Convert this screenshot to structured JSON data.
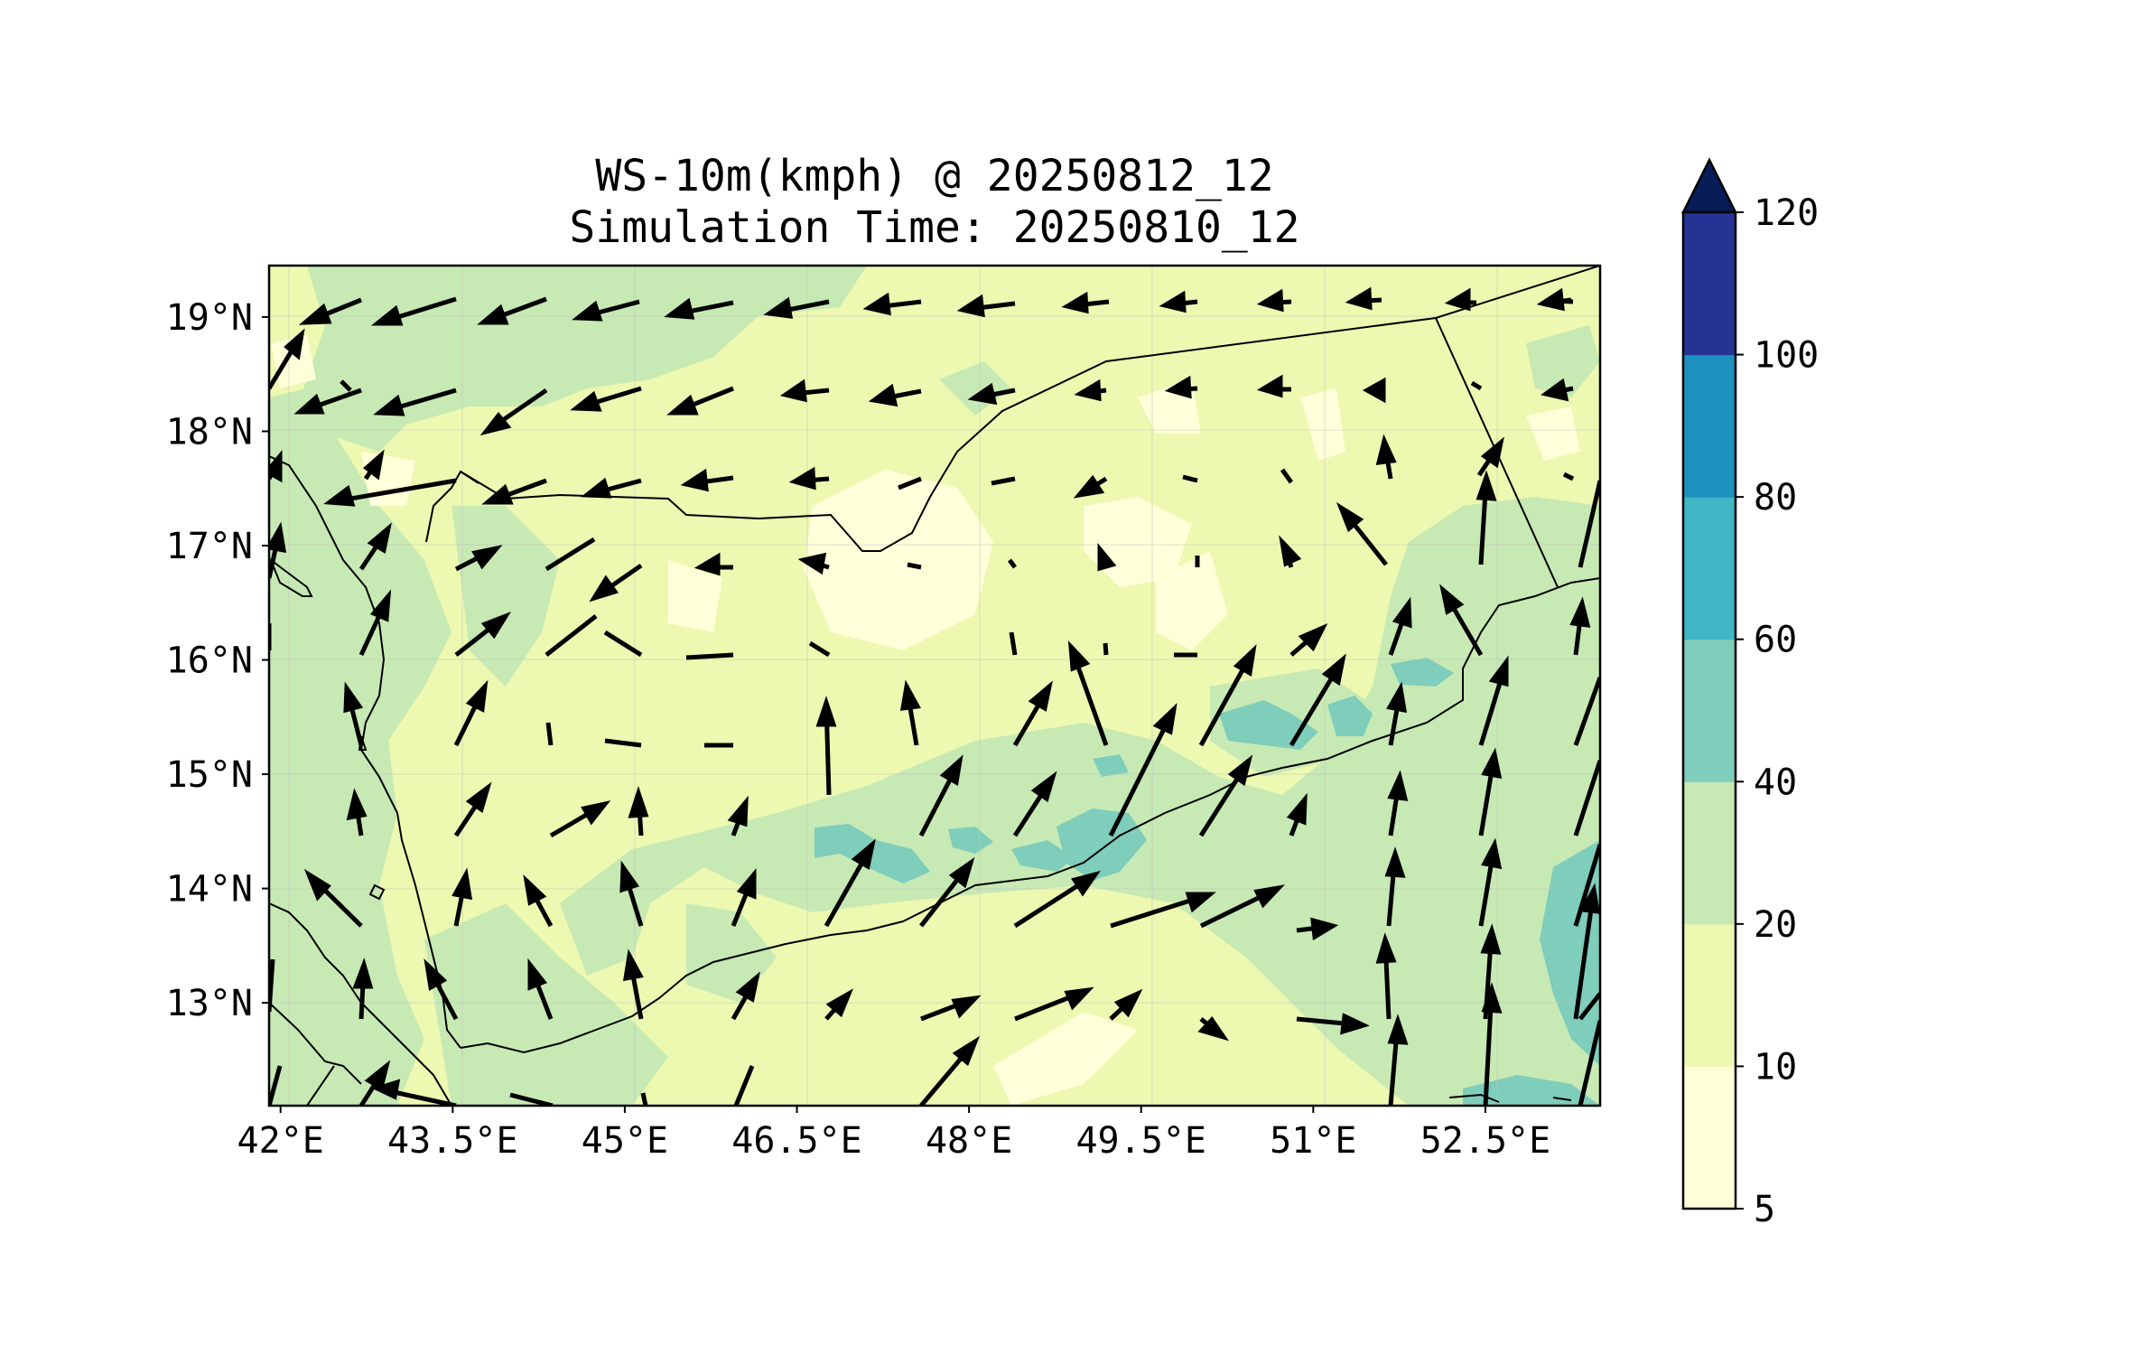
{
  "title": {
    "line1": "WS-10m(kmph) @ 20250812_12",
    "line2": "Simulation Time: 20250810_12"
  },
  "map": {
    "lon_range": [
      41.9,
      53.5
    ],
    "lat_range": [
      12.1,
      19.45
    ],
    "x_ticks": [
      "42°E",
      "43.5°E",
      "45°E",
      "46.5°E",
      "48°E",
      "49.5°E",
      "51°E",
      "52.5°E"
    ],
    "x_tick_values": [
      42,
      43.5,
      45,
      46.5,
      48,
      49.5,
      51,
      52.5
    ],
    "y_ticks": [
      "13°N",
      "14°N",
      "15°N",
      "16°N",
      "17°N",
      "18°N",
      "19°N"
    ],
    "y_tick_values": [
      13,
      14,
      15,
      16,
      17,
      18,
      19
    ],
    "gridlines": true
  },
  "colorbar": {
    "labels": [
      "5",
      "10",
      "20",
      "40",
      "60",
      "80",
      "100",
      "120"
    ],
    "colors": [
      "#ffffd9",
      "#edf8b1",
      "#c7e9b4",
      "#7fcdbb",
      "#41b6c4",
      "#1d91c0",
      "#253494"
    ],
    "extend_color": "#081d58",
    "extend": "max"
  }
}
